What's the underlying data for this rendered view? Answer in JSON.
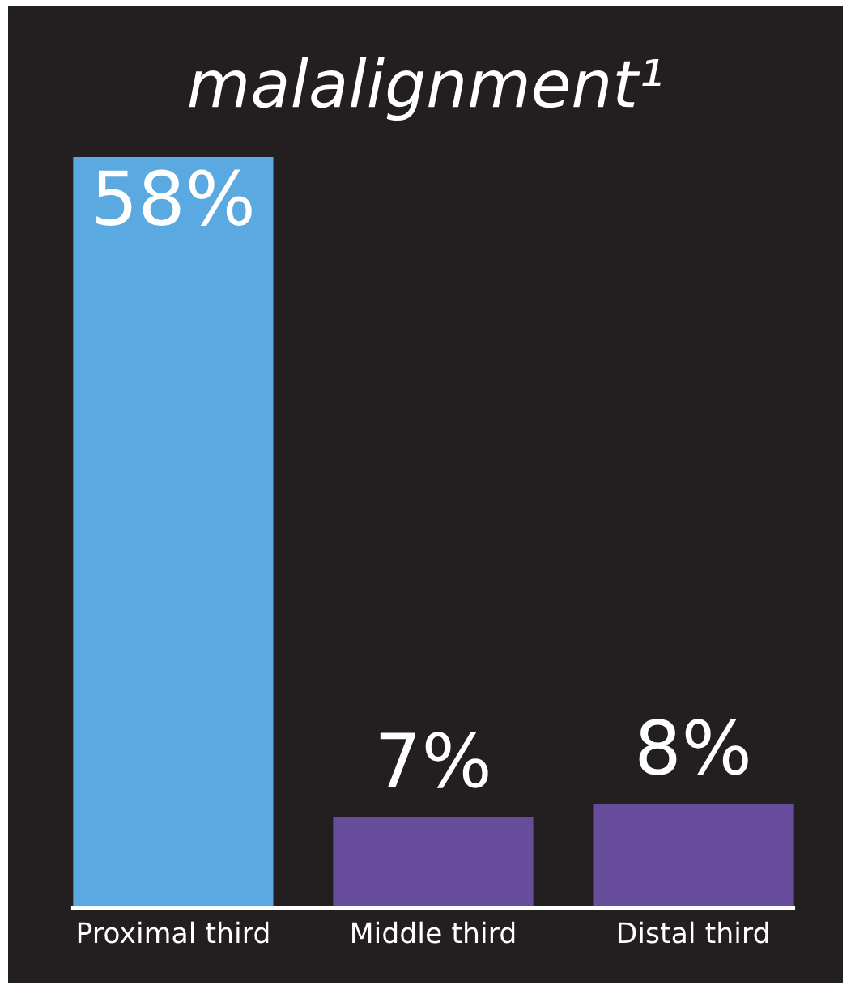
{
  "chart_data": {
    "type": "bar",
    "title": "malalignment¹",
    "categories": [
      "Proximal third",
      "Middle third",
      "Distal third"
    ],
    "values": [
      58,
      7,
      8
    ],
    "colors": [
      "#5aa9e0",
      "#674c9c",
      "#674c9c"
    ],
    "value_labels": [
      "58%",
      "7%",
      "8%"
    ]
  }
}
